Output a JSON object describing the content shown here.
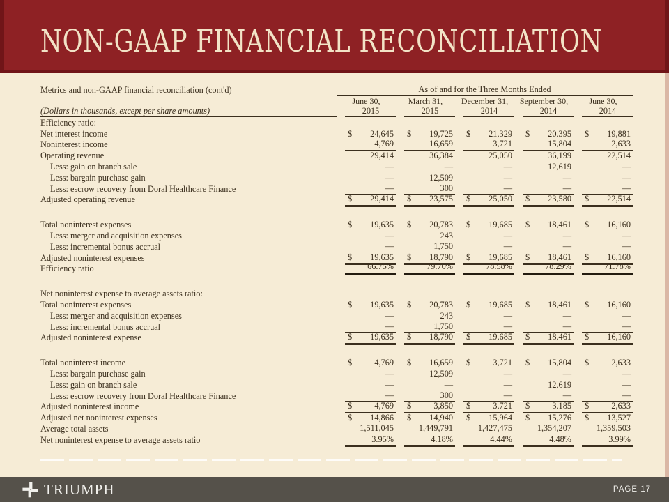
{
  "slide": {
    "title": "NON-GAAP FINANCIAL RECONCILIATION",
    "brand": "TRIUMPH",
    "page_label": "PAGE 17"
  },
  "colors": {
    "header_red": "#8e2124",
    "header_red_dark": "#701518",
    "body_cream": "#f6ecd6",
    "title_cream": "#f2e3c6",
    "table_ink": "#3b2f1e",
    "footer_gray": "#55514a"
  },
  "table": {
    "left_header": "Metrics and non-GAAP financial reconciliation (cont'd)",
    "units_note": "(Dollars in thousands, except per share amounts)",
    "span_header": "As of and for the Three Months Ended",
    "columns": [
      {
        "line1": "June 30,",
        "line2": "2015"
      },
      {
        "line1": "March 31,",
        "line2": "2015"
      },
      {
        "line1": "December 31,",
        "line2": "2014"
      },
      {
        "line1": "September 30,",
        "line2": "2014"
      },
      {
        "line1": "June 30,",
        "line2": "2014"
      }
    ],
    "rows": [
      {
        "type": "section",
        "label": "Efficiency ratio:"
      },
      {
        "label": "Net interest income",
        "dollar": true,
        "values": [
          "24,645",
          "19,725",
          "21,329",
          "20,395",
          "19,881"
        ]
      },
      {
        "label": "Noninterest income",
        "values": [
          "4,769",
          "16,659",
          "3,721",
          "15,804",
          "2,633"
        ],
        "rule": "single"
      },
      {
        "label": "Operating revenue",
        "values": [
          "29,414",
          "36,384",
          "25,050",
          "36,199",
          "22,514"
        ]
      },
      {
        "label": "Less: gain on branch sale",
        "indent": true,
        "values": [
          "—",
          "—",
          "—",
          "12,619",
          "—"
        ]
      },
      {
        "label": "Less: bargain purchase gain",
        "indent": true,
        "values": [
          "—",
          "12,509",
          "—",
          "—",
          "—"
        ]
      },
      {
        "label": "Less: escrow recovery from Doral Healthcare Finance",
        "indent": true,
        "values": [
          "—",
          "300",
          "—",
          "—",
          "—"
        ],
        "rule": "single"
      },
      {
        "label": "Adjusted operating revenue",
        "dollar": true,
        "values": [
          "29,414",
          "23,575",
          "25,050",
          "23,580",
          "22,514"
        ],
        "rule": "double"
      },
      {
        "type": "spacer"
      },
      {
        "label": "Total noninterest expenses",
        "dollar": true,
        "values": [
          "19,635",
          "20,783",
          "19,685",
          "18,461",
          "16,160"
        ]
      },
      {
        "label": "Less: merger and acquisition expenses",
        "indent": true,
        "values": [
          "—",
          "243",
          "—",
          "—",
          "—"
        ]
      },
      {
        "label": "Less: incremental bonus accrual",
        "indent": true,
        "values": [
          "—",
          "1,750",
          "—",
          "—",
          "—"
        ],
        "rule": "single"
      },
      {
        "label": "Adjusted noninterest expenses",
        "dollar": true,
        "values": [
          "19,635",
          "18,790",
          "19,685",
          "18,461",
          "16,160"
        ],
        "rule": "double"
      },
      {
        "label": "Efficiency ratio",
        "values": [
          "66.75%",
          "79.70%",
          "78.58%",
          "78.29%",
          "71.78%"
        ],
        "rule": "thick"
      },
      {
        "type": "spacer"
      },
      {
        "type": "section",
        "label": "Net noninterest expense to average assets ratio:"
      },
      {
        "label": "Total noninterest expenses",
        "dollar": true,
        "values": [
          "19,635",
          "20,783",
          "19,685",
          "18,461",
          "16,160"
        ]
      },
      {
        "label": "Less: merger and acquisition expenses",
        "indent": true,
        "values": [
          "—",
          "243",
          "—",
          "—",
          "—"
        ]
      },
      {
        "label": "Less: incremental bonus accrual",
        "indent": true,
        "values": [
          "—",
          "1,750",
          "—",
          "—",
          "—"
        ],
        "rule": "single"
      },
      {
        "label": "Adjusted noninterest expense",
        "dollar": true,
        "values": [
          "19,635",
          "18,790",
          "19,685",
          "18,461",
          "16,160"
        ],
        "rule": "double"
      },
      {
        "type": "spacer"
      },
      {
        "label": "Total noninterest income",
        "dollar": true,
        "values": [
          "4,769",
          "16,659",
          "3,721",
          "15,804",
          "2,633"
        ]
      },
      {
        "label": "Less: bargain purchase gain",
        "indent": true,
        "values": [
          "—",
          "12,509",
          "—",
          "—",
          "—"
        ]
      },
      {
        "label": "Less: gain on branch sale",
        "indent": true,
        "values": [
          "—",
          "—",
          "—",
          "12,619",
          "—"
        ]
      },
      {
        "label": "Less: escrow recovery from Doral Healthcare Finance",
        "indent": true,
        "values": [
          "—",
          "300",
          "—",
          "—",
          "—"
        ],
        "rule": "single"
      },
      {
        "label": "Adjusted noninterest income",
        "dollar": true,
        "values": [
          "4,769",
          "3,850",
          "3,721",
          "3,185",
          "2,633"
        ],
        "rule": "single"
      },
      {
        "label": "Adjusted net noninterest expenses",
        "dollar": true,
        "values": [
          "14,866",
          "14,940",
          "15,964",
          "15,276",
          "13,527"
        ]
      },
      {
        "label": "Average total assets",
        "values": [
          "1,511,045",
          "1,449,791",
          "1,427,475",
          "1,354,207",
          "1,359,503"
        ],
        "rule": "single"
      },
      {
        "label": "Net noninterest expense to average assets ratio",
        "values": [
          "3.95%",
          "4.18%",
          "4.44%",
          "4.48%",
          "3.99%"
        ],
        "rule": "double"
      }
    ]
  }
}
